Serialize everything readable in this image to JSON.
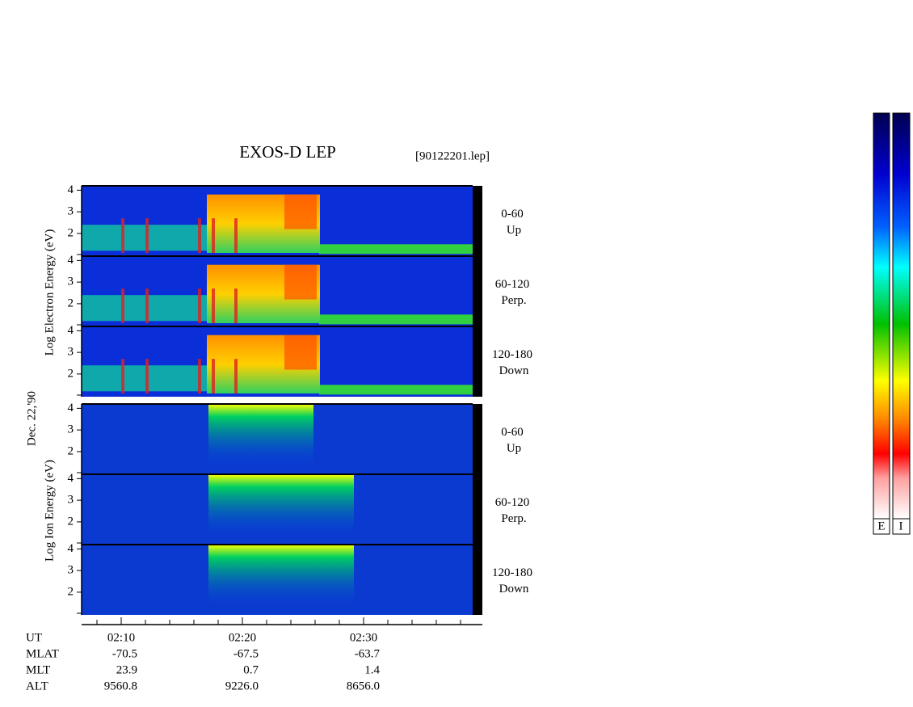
{
  "header": {
    "title": "EXOS-D LEP",
    "file": "[90122201.lep]",
    "date": "Dec. 22,'90"
  },
  "electron": {
    "ylabel": "Log Electron Energy (eV)",
    "panels": [
      {
        "angle": "0-60",
        "direction": "Up"
      },
      {
        "angle": "60-120",
        "direction": "Perp."
      },
      {
        "angle": "120-180",
        "direction": "Down"
      }
    ]
  },
  "ion": {
    "ylabel": "Log Ion Energy (eV)",
    "panels": [
      {
        "angle": "0-60",
        "direction": "Up"
      },
      {
        "angle": "60-120",
        "direction": "Perp."
      },
      {
        "angle": "120-180",
        "direction": "Down"
      }
    ]
  },
  "ylim": [
    0.95,
    4.2
  ],
  "yticks": [
    2,
    3,
    4
  ],
  "time_axis": {
    "ticks": [
      "02:10",
      "02:20",
      "02:30"
    ]
  },
  "orbit": {
    "labels": [
      "UT",
      "MLAT",
      "MLT",
      "ALT"
    ],
    "rows": [
      [
        "-70.5",
        "-67.5",
        "-63.7"
      ],
      [
        "23.9",
        "0.7",
        "1.4"
      ],
      [
        "9560.8",
        "9226.0",
        "8656.0"
      ]
    ]
  },
  "colorbars": [
    "E",
    "I"
  ]
}
